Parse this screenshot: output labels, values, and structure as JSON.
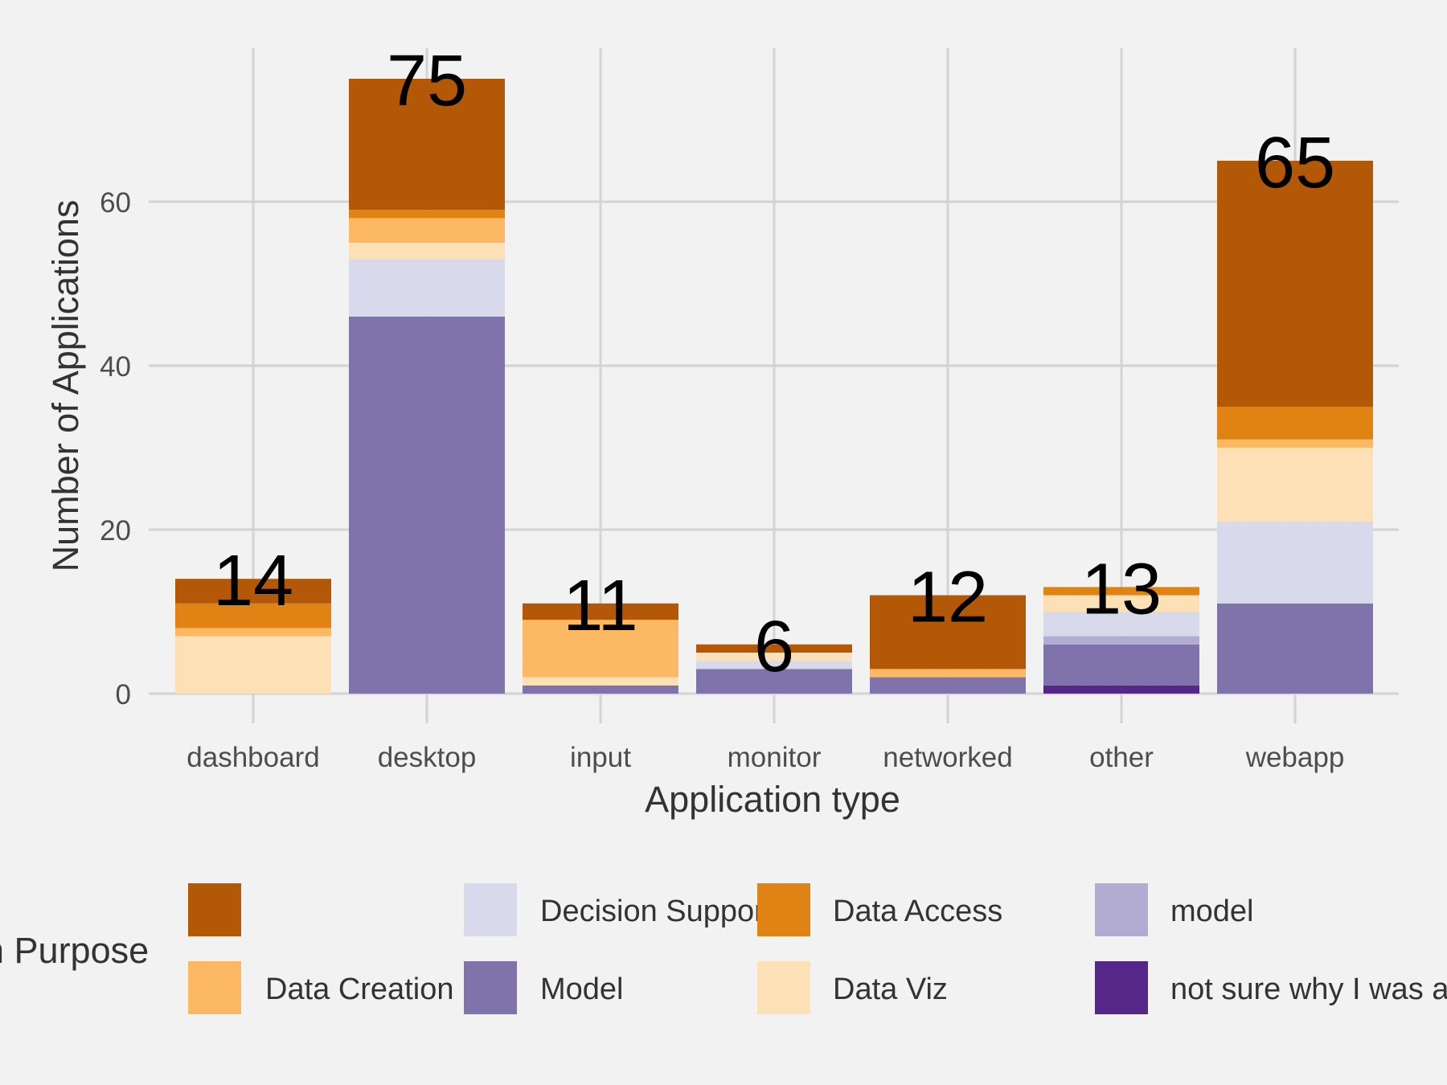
{
  "chart_data": {
    "type": "bar",
    "stacked": true,
    "xlabel": "Application type",
    "ylabel": "Number of Applications",
    "ylim": [
      0,
      80
    ],
    "yticks": [
      0,
      20,
      40,
      60
    ],
    "grid": true,
    "categories": [
      "dashboard",
      "desktop",
      "input",
      "monitor",
      "networked",
      "other",
      "webapp"
    ],
    "totals": [
      14,
      75,
      11,
      6,
      12,
      13,
      65
    ],
    "legend": {
      "title": "n Purpose",
      "placement": "bottom"
    },
    "series": [
      {
        "name": "not sure why I was a",
        "color": "#542788",
        "values": [
          0,
          0,
          0,
          0,
          0,
          1,
          0
        ]
      },
      {
        "name": "Model",
        "color": "#8073ac",
        "values": [
          0,
          46,
          1,
          3,
          2,
          5,
          11
        ]
      },
      {
        "name": "model",
        "color": "#b2abd2",
        "values": [
          0,
          0,
          0,
          0,
          0,
          1,
          0
        ]
      },
      {
        "name": "Decision Support",
        "color": "#d8daeb",
        "values": [
          0,
          7,
          0,
          1,
          0,
          3,
          10
        ]
      },
      {
        "name": "Data Viz",
        "color": "#fee0b6",
        "values": [
          7,
          2,
          1,
          1,
          0,
          2,
          9
        ]
      },
      {
        "name": "Data Creation",
        "color": "#fdb863",
        "values": [
          1,
          3,
          7,
          0,
          1,
          0,
          1
        ]
      },
      {
        "name": "Data Access",
        "color": "#e08214",
        "values": [
          3,
          1,
          0,
          0,
          0,
          1,
          4
        ]
      },
      {
        "name": "",
        "color": "#b35806",
        "values": [
          3,
          16,
          2,
          1,
          9,
          0,
          30
        ]
      }
    ],
    "legend_order": [
      7,
      5,
      3,
      1,
      6,
      4,
      2,
      0
    ]
  }
}
